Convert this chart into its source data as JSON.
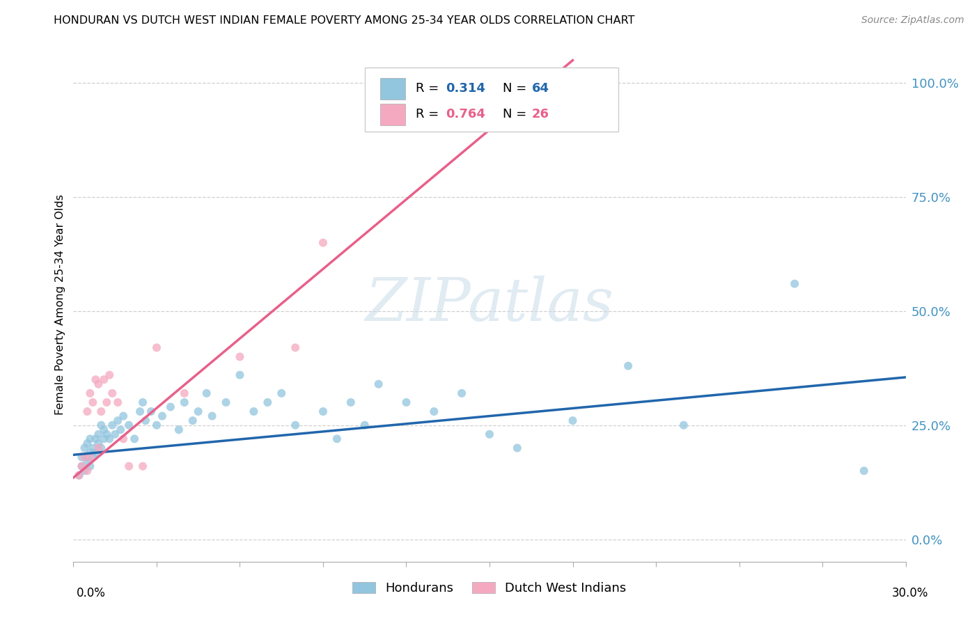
{
  "title": "HONDURAN VS DUTCH WEST INDIAN FEMALE POVERTY AMONG 25-34 YEAR OLDS CORRELATION CHART",
  "source": "Source: ZipAtlas.com",
  "ylabel": "Female Poverty Among 25-34 Year Olds",
  "right_yticks": [
    0.0,
    0.25,
    0.5,
    0.75,
    1.0
  ],
  "right_yticklabels": [
    "0.0%",
    "25.0%",
    "50.0%",
    "75.0%",
    "100.0%"
  ],
  "xmin": 0.0,
  "xmax": 0.3,
  "ymin": -0.05,
  "ymax": 1.08,
  "honduran_R": 0.314,
  "honduran_N": 64,
  "dutch_R": 0.764,
  "dutch_N": 26,
  "blue_scatter_color": "#92c5de",
  "pink_scatter_color": "#f4a9c0",
  "blue_line_color": "#2166ac",
  "pink_line_color": "#e8608a",
  "blue_label_color": "#4393c3",
  "legend_hondurans": "Hondurans",
  "legend_dutch": "Dutch West Indians",
  "watermark": "ZIPatlas",
  "grid_color": "#d0d0d0",
  "honduran_x": [
    0.002,
    0.003,
    0.003,
    0.004,
    0.004,
    0.005,
    0.005,
    0.005,
    0.006,
    0.006,
    0.006,
    0.007,
    0.007,
    0.008,
    0.008,
    0.009,
    0.009,
    0.01,
    0.01,
    0.011,
    0.011,
    0.012,
    0.013,
    0.014,
    0.015,
    0.016,
    0.017,
    0.018,
    0.02,
    0.022,
    0.024,
    0.025,
    0.026,
    0.028,
    0.03,
    0.032,
    0.035,
    0.038,
    0.04,
    0.043,
    0.045,
    0.048,
    0.05,
    0.055,
    0.06,
    0.065,
    0.07,
    0.075,
    0.08,
    0.09,
    0.095,
    0.1,
    0.105,
    0.11,
    0.12,
    0.13,
    0.14,
    0.15,
    0.16,
    0.18,
    0.2,
    0.22,
    0.26,
    0.285
  ],
  "honduran_y": [
    0.14,
    0.16,
    0.18,
    0.15,
    0.2,
    0.18,
    0.21,
    0.17,
    0.19,
    0.22,
    0.16,
    0.2,
    0.18,
    0.22,
    0.19,
    0.21,
    0.23,
    0.2,
    0.25,
    0.22,
    0.24,
    0.23,
    0.22,
    0.25,
    0.23,
    0.26,
    0.24,
    0.27,
    0.25,
    0.22,
    0.28,
    0.3,
    0.26,
    0.28,
    0.25,
    0.27,
    0.29,
    0.24,
    0.3,
    0.26,
    0.28,
    0.32,
    0.27,
    0.3,
    0.36,
    0.28,
    0.3,
    0.32,
    0.25,
    0.28,
    0.22,
    0.3,
    0.25,
    0.34,
    0.3,
    0.28,
    0.32,
    0.23,
    0.2,
    0.26,
    0.38,
    0.25,
    0.56,
    0.15
  ],
  "dutch_x": [
    0.002,
    0.003,
    0.004,
    0.005,
    0.005,
    0.006,
    0.006,
    0.007,
    0.008,
    0.009,
    0.009,
    0.01,
    0.011,
    0.012,
    0.013,
    0.014,
    0.016,
    0.018,
    0.02,
    0.025,
    0.03,
    0.04,
    0.06,
    0.08,
    0.09,
    0.16
  ],
  "dutch_y": [
    0.14,
    0.16,
    0.18,
    0.15,
    0.28,
    0.18,
    0.32,
    0.3,
    0.35,
    0.2,
    0.34,
    0.28,
    0.35,
    0.3,
    0.36,
    0.32,
    0.3,
    0.22,
    0.16,
    0.16,
    0.42,
    0.32,
    0.4,
    0.42,
    0.65,
    1.02
  ],
  "blue_line_x0": 0.0,
  "blue_line_y0": 0.185,
  "blue_line_x1": 0.3,
  "blue_line_y1": 0.355,
  "pink_line_x0": 0.0,
  "pink_line_y0": 0.135,
  "pink_line_x1": 0.18,
  "pink_line_y1": 1.05
}
